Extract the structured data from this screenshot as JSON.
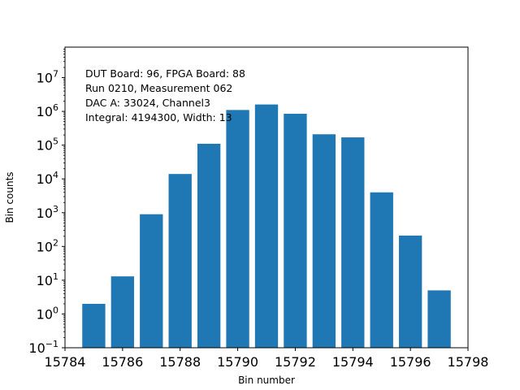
{
  "chart_data": {
    "type": "bar",
    "title": "",
    "xlabel": "Bin number",
    "ylabel": "Bin counts",
    "yscale": "log",
    "xlim": [
      15784,
      15798
    ],
    "ylim": [
      0.1,
      80000000
    ],
    "bar_color": "#1f77b4",
    "grid": false,
    "x": [
      15785,
      15786,
      15787,
      15788,
      15789,
      15790,
      15791,
      15792,
      15793,
      15794,
      15795,
      15796,
      15797
    ],
    "values": [
      2,
      13,
      900,
      14000,
      110000,
      1100000,
      1600000,
      850000,
      210000,
      170000,
      4000,
      210,
      5
    ],
    "x_ticks": [
      15784,
      15786,
      15788,
      15790,
      15792,
      15794,
      15796,
      15798
    ],
    "y_ticks": [
      {
        "base": "10",
        "exp": "−1"
      },
      {
        "base": "10",
        "exp": "0"
      },
      {
        "base": "10",
        "exp": "1"
      },
      {
        "base": "10",
        "exp": "2"
      },
      {
        "base": "10",
        "exp": "3"
      },
      {
        "base": "10",
        "exp": "4"
      },
      {
        "base": "10",
        "exp": "5"
      },
      {
        "base": "10",
        "exp": "6"
      },
      {
        "base": "10",
        "exp": "7"
      }
    ],
    "annotations": [
      "DUT Board: 96, FPGA Board: 88",
      "Run 0210, Measurement 062",
      "DAC A: 33024, Channel3",
      "Integral: 4194300, Width: 13"
    ]
  }
}
